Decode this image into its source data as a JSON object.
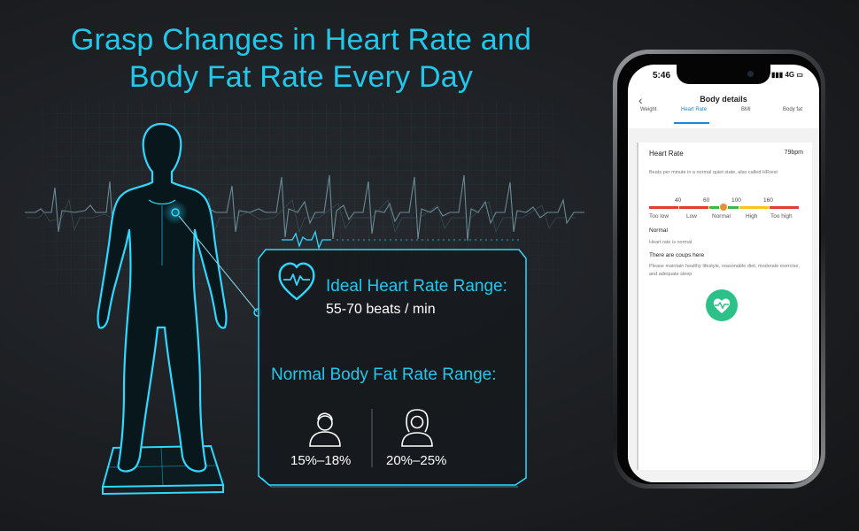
{
  "headline": {
    "line1": "Grasp Changes in Heart Rate and",
    "line2": "Body Fat Rate Every Day"
  },
  "panel": {
    "heart_title": "Ideal Heart Rate Range:",
    "heart_value": "55-70 beats / min",
    "fat_title": "Normal Body Fat Rate Range:",
    "male_pct": "15%–18%",
    "female_pct": "20%–25%"
  },
  "phone": {
    "status_time": "5:46",
    "status_network": "4G",
    "nav_title": "Body details",
    "tabs": [
      "Weight",
      "Heart Rate",
      "BMI",
      "Body fat"
    ],
    "active_tab": "Heart Rate",
    "card": {
      "label": "Heart Rate",
      "value": "79bpm",
      "description": "Beats per minute in a normal quiet state, also called HRrest",
      "scale_numbers": [
        "40",
        "60",
        "100",
        "160"
      ],
      "scale_labels": [
        "Too low",
        "Low",
        "Normal",
        "High",
        "Too high"
      ],
      "scale_colors": [
        "#e53935",
        "#e53935",
        "#3cb54a",
        "#f5c518",
        "#e53935"
      ],
      "state": "Normal",
      "state_description": "Heart rate is normal",
      "tips_title": "There are coups here",
      "tips_body": "Please maintain healthy lifestyle, reasonable diet, moderate exercise, and adequate sleep"
    }
  },
  "colors": {
    "accent": "#22c8ec",
    "background": "#1c1e21",
    "heart_button": "#2cc189"
  }
}
